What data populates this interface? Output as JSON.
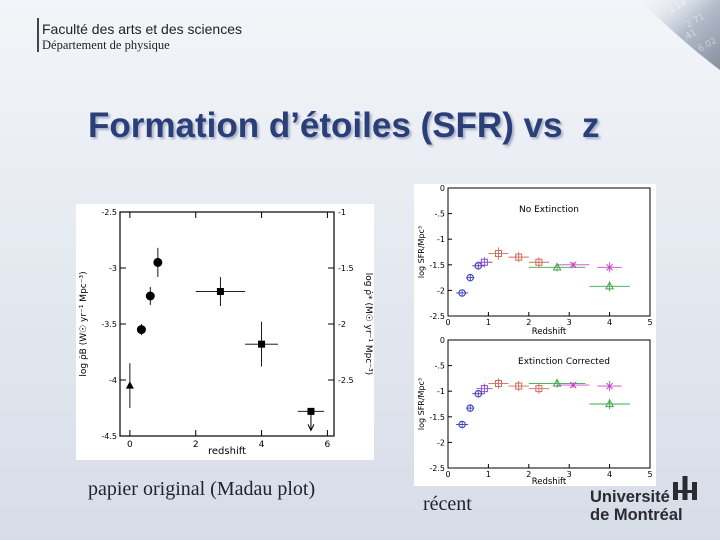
{
  "header": {
    "faculty": "Faculté des arts et des sciences",
    "department": "Département de physique"
  },
  "slide": {
    "title": "Formation d’étoiles (SFR) vs  z",
    "caption_left": "papier original (Madau plot)",
    "caption_right": "récent"
  },
  "logo": {
    "line1": "Université",
    "line2": "de Montréal"
  },
  "colors": {
    "title": "#2a3e78",
    "blue": "#3a3fc0",
    "red": "#d06a5a",
    "purple": "#8a48c8",
    "green": "#3aa84a",
    "magenta": "#c848c8"
  },
  "chart_data": [
    {
      "type": "scatter",
      "xlabel": "redshift",
      "ylabel_left": "log ρ̇B (W☉ yr⁻¹ Mpc⁻³)",
      "ylabel_right": "log ρ̇* (M☉ yr⁻¹ Mpc⁻³)",
      "xlim": [
        -0.3,
        6.2
      ],
      "ylim": [
        -4.5,
        -2.5
      ],
      "x_ticks": [
        "0",
        "2",
        "4",
        "6"
      ],
      "y_ticks": [
        "-2.5",
        "-3",
        "-3.5",
        "-4",
        "-4.5"
      ],
      "y_ticks_right": [
        "-1",
        "-1.5",
        "-2",
        "-2.5"
      ],
      "points": [
        {
          "x": 0.0,
          "y": -4.05,
          "marker": "triangle",
          "yerr": [
            0.2,
            0.2
          ],
          "xerr": [
            0,
            0
          ]
        },
        {
          "x": 0.35,
          "y": -3.55,
          "marker": "circle",
          "yerr": [
            0.05,
            0.05
          ],
          "xerr": [
            0.1,
            0.1
          ]
        },
        {
          "x": 0.62,
          "y": -3.25,
          "marker": "circle",
          "yerr": [
            0.08,
            0.08
          ],
          "xerr": [
            0.1,
            0.1
          ]
        },
        {
          "x": 0.85,
          "y": -2.95,
          "marker": "circle",
          "yerr": [
            0.13,
            0.13
          ],
          "xerr": [
            0.1,
            0.1
          ]
        },
        {
          "x": 2.75,
          "y": -3.21,
          "marker": "square",
          "yerr": [
            0.13,
            0.13
          ],
          "xerr": [
            0.75,
            0.75
          ]
        },
        {
          "x": 4.0,
          "y": -3.68,
          "marker": "square",
          "yerr": [
            0.2,
            0.2
          ],
          "xerr": [
            0.5,
            0.5
          ]
        },
        {
          "x": 5.5,
          "y": -4.28,
          "marker": "square",
          "yerr": [
            0,
            0
          ],
          "xerr": [
            0.4,
            0.4
          ],
          "upper_limit": true
        }
      ]
    },
    {
      "type": "scatter",
      "title": "No Extinction",
      "xlabel": "Redshift",
      "ylabel": "log SFR/Mpc³",
      "xlim": [
        0,
        5
      ],
      "ylim": [
        -2.5,
        0
      ],
      "x_ticks": [
        "0",
        "1",
        "2",
        "3",
        "4",
        "5"
      ],
      "y_ticks": [
        "0",
        "-.5",
        "-1",
        "-1.5",
        "-2",
        "-2.5"
      ],
      "points": [
        {
          "x": 0.35,
          "y": -2.05,
          "color": "blue",
          "marker": "circle",
          "xerr": 0.15,
          "yerr": 0.05
        },
        {
          "x": 0.55,
          "y": -1.75,
          "color": "blue",
          "marker": "circle",
          "xerr": 0.1,
          "yerr": 0.05
        },
        {
          "x": 0.75,
          "y": -1.52,
          "color": "blue",
          "marker": "circle",
          "xerr": 0.15,
          "yerr": 0.05
        },
        {
          "x": 0.9,
          "y": -1.45,
          "color": "purple",
          "marker": "square",
          "xerr": 0.2,
          "yerr": 0.1
        },
        {
          "x": 1.25,
          "y": -1.28,
          "color": "red",
          "marker": "square",
          "xerr": 0.25,
          "yerr": 0.12
        },
        {
          "x": 1.75,
          "y": -1.35,
          "color": "red",
          "marker": "square",
          "xerr": 0.25,
          "yerr": 0.1
        },
        {
          "x": 2.25,
          "y": -1.45,
          "color": "red",
          "marker": "square",
          "xerr": 0.25,
          "yerr": 0.1
        },
        {
          "x": 2.7,
          "y": -1.55,
          "color": "green",
          "marker": "triangle",
          "xerr": 0.7,
          "yerr": 0.08
        },
        {
          "x": 3.1,
          "y": -1.5,
          "color": "magenta",
          "marker": "cross",
          "xerr": 0.4,
          "yerr": 0.05
        },
        {
          "x": 4.0,
          "y": -1.92,
          "color": "green",
          "marker": "triangle",
          "xerr": 0.5,
          "yerr": 0.1
        },
        {
          "x": 4.0,
          "y": -1.55,
          "color": "magenta",
          "marker": "cross",
          "xerr": 0.3,
          "yerr": 0.1
        }
      ]
    },
    {
      "type": "scatter",
      "title": "Extinction Corrected",
      "xlabel": "Redshift",
      "ylabel": "log SFR/Mpc³",
      "xlim": [
        0,
        5
      ],
      "ylim": [
        -2.5,
        0
      ],
      "x_ticks": [
        "0",
        "1",
        "2",
        "3",
        "4",
        "5"
      ],
      "y_ticks": [
        "0",
        "-.5",
        "-1",
        "-1.5",
        "-2",
        "-2.5"
      ],
      "points": [
        {
          "x": 0.35,
          "y": -1.65,
          "color": "blue",
          "marker": "circle",
          "xerr": 0.15,
          "yerr": 0.05
        },
        {
          "x": 0.55,
          "y": -1.33,
          "color": "blue",
          "marker": "circle",
          "xerr": 0.1,
          "yerr": 0.05
        },
        {
          "x": 0.75,
          "y": -1.05,
          "color": "blue",
          "marker": "circle",
          "xerr": 0.15,
          "yerr": 0.05
        },
        {
          "x": 0.9,
          "y": -0.95,
          "color": "purple",
          "marker": "square",
          "xerr": 0.2,
          "yerr": 0.1
        },
        {
          "x": 1.25,
          "y": -0.85,
          "color": "red",
          "marker": "square",
          "xerr": 0.25,
          "yerr": 0.1
        },
        {
          "x": 1.75,
          "y": -0.9,
          "color": "red",
          "marker": "square",
          "xerr": 0.25,
          "yerr": 0.1
        },
        {
          "x": 2.25,
          "y": -0.95,
          "color": "red",
          "marker": "square",
          "xerr": 0.25,
          "yerr": 0.1
        },
        {
          "x": 2.7,
          "y": -0.85,
          "color": "green",
          "marker": "triangle",
          "xerr": 0.7,
          "yerr": 0.08
        },
        {
          "x": 3.1,
          "y": -0.88,
          "color": "magenta",
          "marker": "cross",
          "xerr": 0.4,
          "yerr": 0.05
        },
        {
          "x": 4.0,
          "y": -1.25,
          "color": "green",
          "marker": "triangle",
          "xerr": 0.5,
          "yerr": 0.1
        },
        {
          "x": 4.0,
          "y": -0.9,
          "color": "magenta",
          "marker": "cross",
          "xerr": 0.3,
          "yerr": 0.1
        }
      ]
    }
  ]
}
